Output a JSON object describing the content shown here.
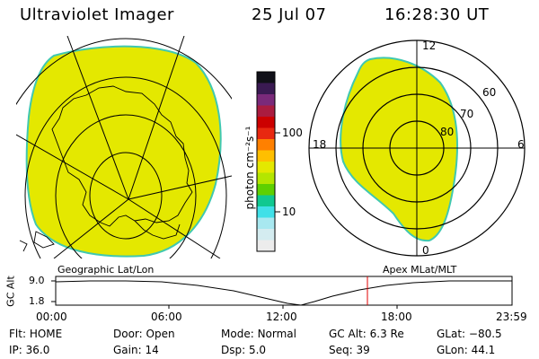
{
  "header": {
    "title": "Ultraviolet Imager",
    "date": "25 Jul 07",
    "time": "16:28:30 UT"
  },
  "colorbar": {
    "unit": "photon cm⁻²s⁻¹",
    "tick_labels": [
      "100",
      "10"
    ],
    "colors": [
      "#101018",
      "#3a1a52",
      "#7a2a7a",
      "#aa1c40",
      "#cc0000",
      "#e82810",
      "#ff8000",
      "#ffbf00",
      "#e4e800",
      "#b4e600",
      "#5ed000",
      "#10c890",
      "#40e0e8",
      "#a8e8f0",
      "#d4ecf0",
      "#ececec"
    ]
  },
  "polar_plot": {
    "mlt_labels": {
      "top": "12",
      "left": "18",
      "right": "6",
      "bottom": "0"
    },
    "lat_labels": [
      "60",
      "70",
      "80"
    ]
  },
  "timeline": {
    "axis_label": "GC Alt",
    "y_ticks": [
      "9.0",
      "1.8"
    ],
    "left_caption": "Geographic Lat/Lon",
    "right_caption": "Apex MLat/MLT",
    "x_labels": [
      "00:00",
      "06:00",
      "12:00",
      "18:00",
      "23:59"
    ],
    "current_marker_color": "#e00000"
  },
  "metadata": {
    "row1": [
      {
        "label": "Flt:",
        "value": "HOME"
      },
      {
        "label": "Door:",
        "value": "Open"
      },
      {
        "label": "Mode:",
        "value": "Normal"
      },
      {
        "label": "GC Alt:",
        "value": "6.3 Re"
      },
      {
        "label": "GLat:",
        "value": "−80.5"
      }
    ],
    "row2": [
      {
        "label": "IP:",
        "value": "36.0"
      },
      {
        "label": "Gain:",
        "value": "14"
      },
      {
        "label": "Dsp:",
        "value": "5.0"
      },
      {
        "label": "Seq:",
        "value": "39"
      },
      {
        "label": "GLon:",
        "value": "44.1"
      }
    ]
  },
  "colors": {
    "aurora_fill": "#e4e800",
    "aurora_edge": "#40c8b0"
  }
}
